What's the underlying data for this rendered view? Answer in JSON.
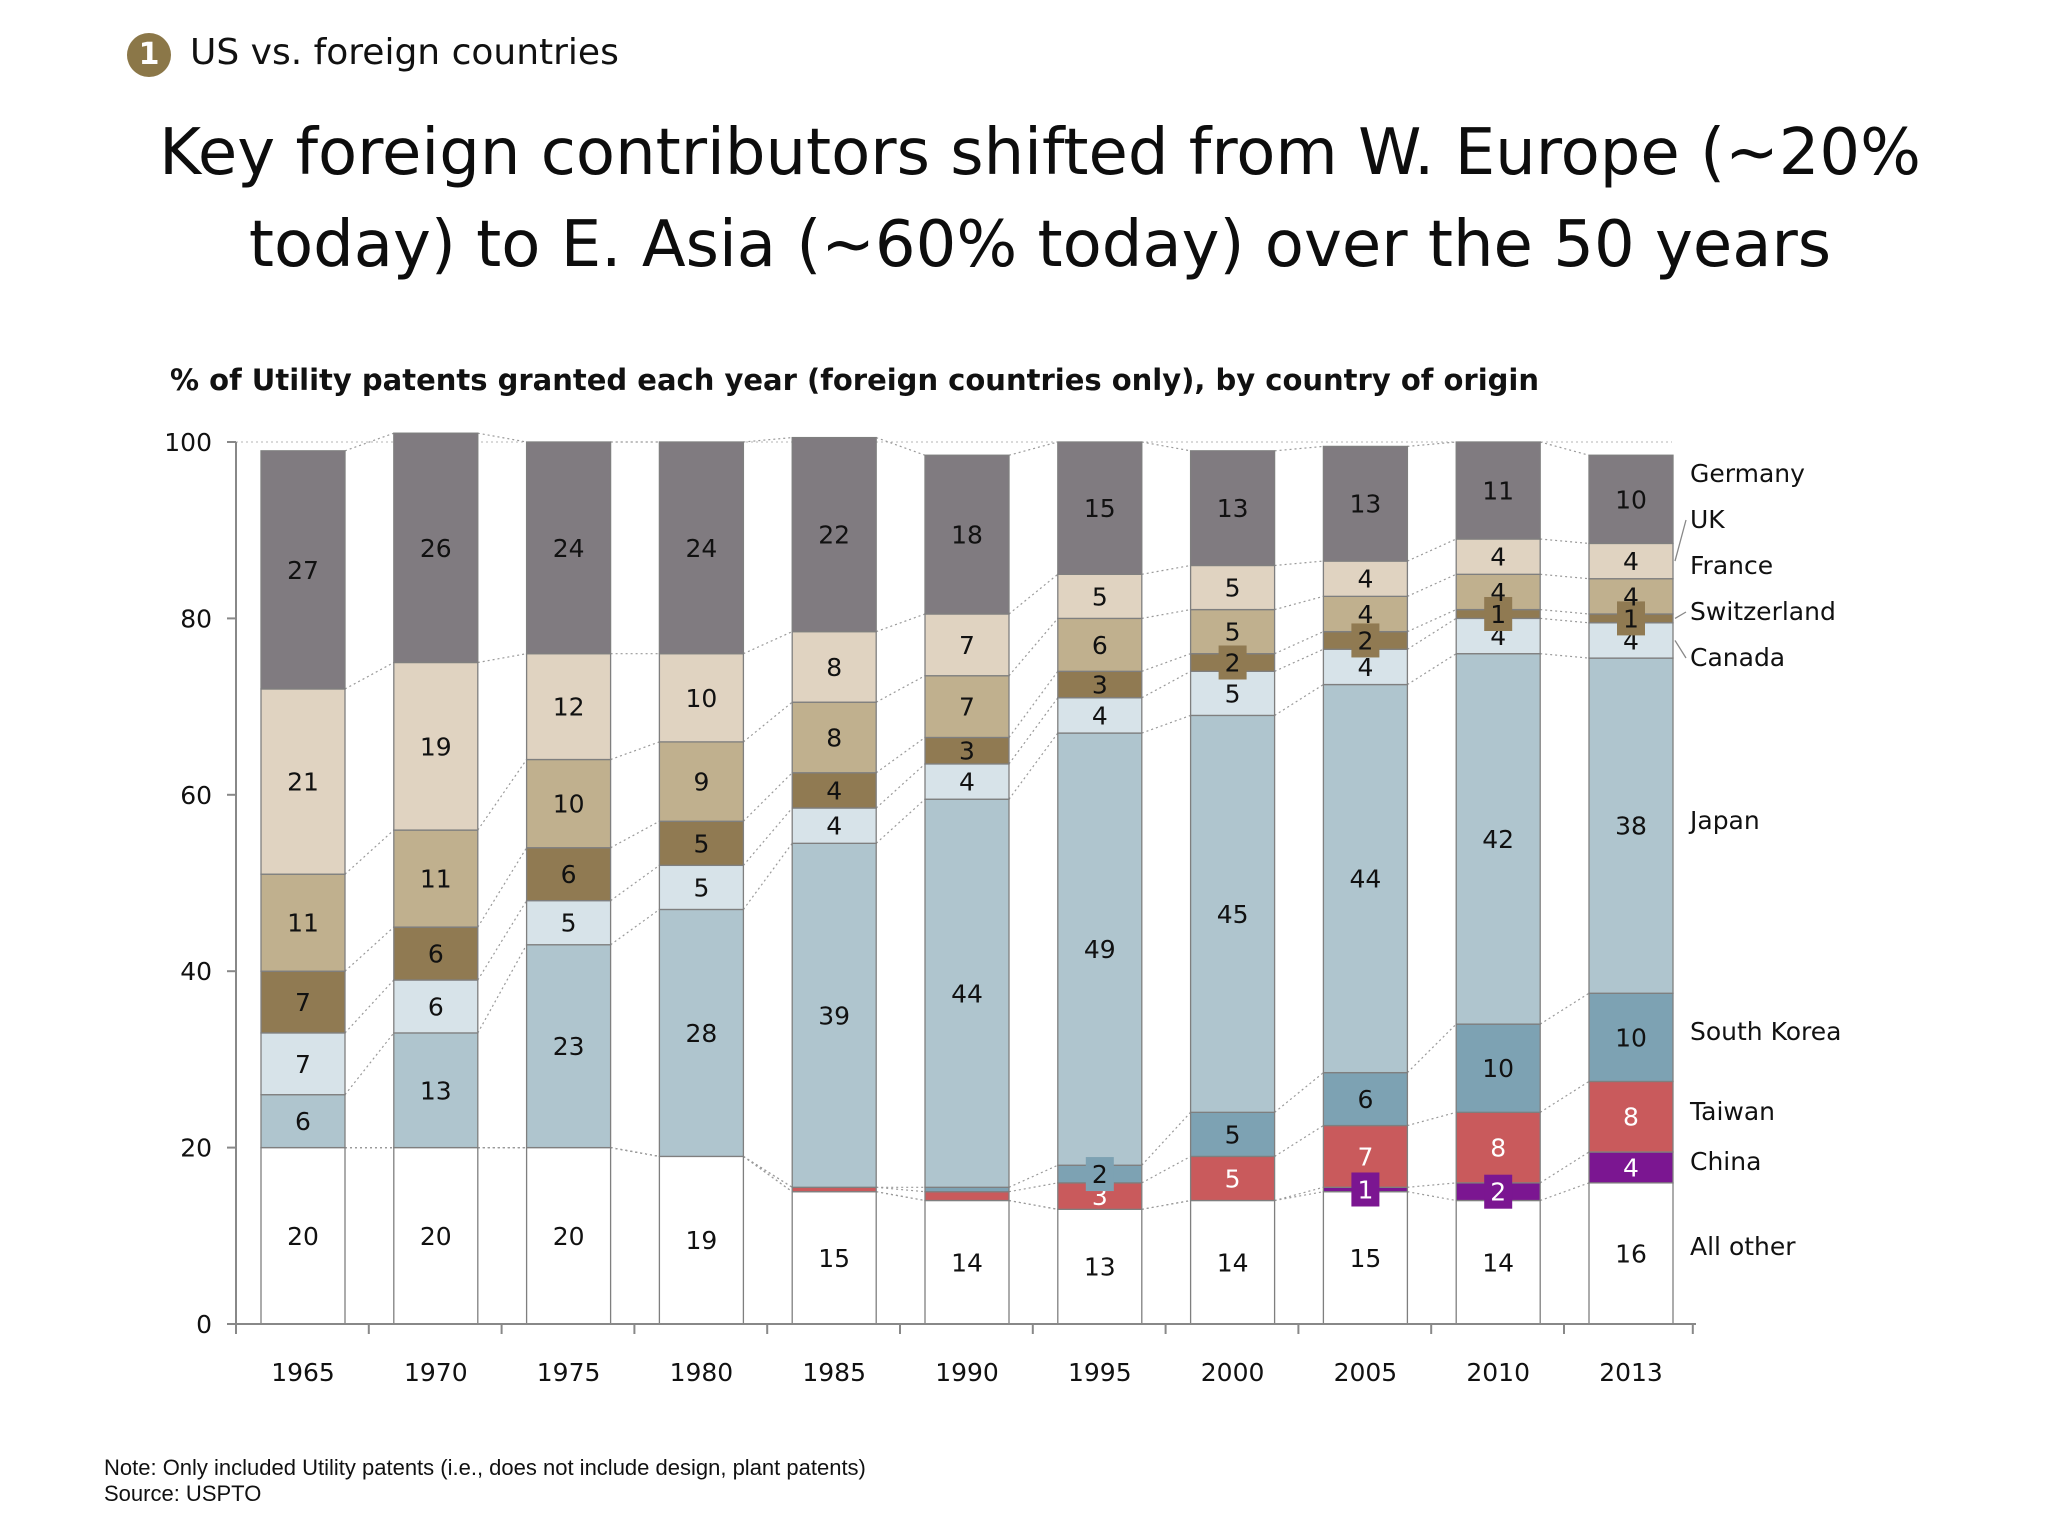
{
  "badge": "1",
  "section": "US vs. foreign countries",
  "title_line1": "Key foreign contributors shifted from W. Europe (~20%",
  "title_line2": "today) to E. Asia (~60% today) over the 50 years",
  "subtitle": "% of Utility patents granted each year (foreign countries only), by country of origin",
  "note": "Note: Only included Utility patents (i.e., does not include design, plant patents)",
  "source": "Source: USPTO",
  "chart_data": {
    "type": "bar",
    "stacked": true,
    "categories": [
      "1965",
      "1970",
      "1975",
      "1980",
      "1985",
      "1990",
      "1995",
      "2000",
      "2005",
      "2010",
      "2013"
    ],
    "ylim": [
      0,
      100
    ],
    "yticks": [
      0,
      20,
      40,
      60,
      80,
      100
    ],
    "series": [
      {
        "name": "All other",
        "color": "#ffffff",
        "text": "#111111",
        "values": [
          20,
          20,
          20,
          19,
          15,
          14,
          13,
          14,
          15,
          14,
          16
        ],
        "labels": [
          "20",
          "20",
          "20",
          "19",
          "15",
          "14",
          "13",
          "14",
          "15",
          "14",
          "16"
        ]
      },
      {
        "name": "China",
        "color": "#7B1691",
        "text": "#ffffff",
        "values": [
          0,
          0,
          0,
          0,
          0,
          0,
          0,
          0,
          0.5,
          2,
          3.5
        ],
        "labels": [
          "",
          "",
          "",
          "",
          "",
          "",
          "",
          "",
          "1",
          "2",
          "4"
        ]
      },
      {
        "name": "Taiwan",
        "color": "#C95A5C",
        "text": "#ffffff",
        "values": [
          0,
          0,
          0,
          0,
          0.5,
          1,
          3,
          5,
          7,
          8,
          8
        ],
        "labels": [
          "",
          "",
          "",
          "",
          "",
          "",
          "3",
          "5",
          "7",
          "8",
          "8"
        ]
      },
      {
        "name": "South Korea",
        "color": "#7DA2B3",
        "text": "#111111",
        "values": [
          0,
          0,
          0,
          0,
          0,
          0.5,
          2,
          5,
          6,
          10,
          10
        ],
        "labels": [
          "",
          "",
          "",
          "",
          "",
          "",
          "2",
          "5",
          "6",
          "10",
          "10"
        ]
      },
      {
        "name": "Japan",
        "color": "#AFC5CE",
        "text": "#111111",
        "values": [
          6,
          13,
          23,
          28,
          39,
          44,
          49,
          45,
          44,
          42,
          38
        ],
        "labels": [
          "6",
          "13",
          "23",
          "28",
          "39",
          "44",
          "49",
          "45",
          "44",
          "42",
          "38"
        ]
      },
      {
        "name": "Canada",
        "color": "#D7E3E9",
        "text": "#111111",
        "values": [
          7,
          6,
          5,
          5,
          4,
          4,
          4,
          5,
          4,
          4,
          4
        ],
        "labels": [
          "7",
          "6",
          "5",
          "5",
          "4",
          "4",
          "4",
          "5",
          "4",
          "4",
          "4"
        ]
      },
      {
        "name": "Switzerland",
        "color": "#907A52",
        "text": "#111111",
        "values": [
          7,
          6,
          6,
          5,
          4,
          3,
          3,
          2,
          2,
          1,
          1
        ],
        "labels": [
          "7",
          "6",
          "6",
          "5",
          "4",
          "3",
          "3",
          "2",
          "2",
          "1",
          "1"
        ]
      },
      {
        "name": "France",
        "color": "#C0B08E",
        "text": "#111111",
        "values": [
          11,
          11,
          10,
          9,
          8,
          7,
          6,
          5,
          4,
          4,
          4
        ],
        "labels": [
          "11",
          "11",
          "10",
          "9",
          "8",
          "7",
          "6",
          "5",
          "4",
          "4",
          "4"
        ]
      },
      {
        "name": "UK",
        "color": "#E0D3C1",
        "text": "#111111",
        "values": [
          21,
          19,
          12,
          10,
          8,
          7,
          5,
          5,
          4,
          4,
          4
        ],
        "labels": [
          "21",
          "19",
          "12",
          "10",
          "8",
          "7",
          "5",
          "5",
          "4",
          "4",
          "4"
        ]
      },
      {
        "name": "Germany",
        "color": "#807B80",
        "text": "#111111",
        "values": [
          27,
          26,
          24,
          24,
          22,
          18,
          15,
          13,
          13,
          11,
          10
        ],
        "labels": [
          "27",
          "26",
          "24",
          "24",
          "22",
          "18",
          "15",
          "13",
          "13",
          "11",
          "10"
        ]
      }
    ]
  }
}
